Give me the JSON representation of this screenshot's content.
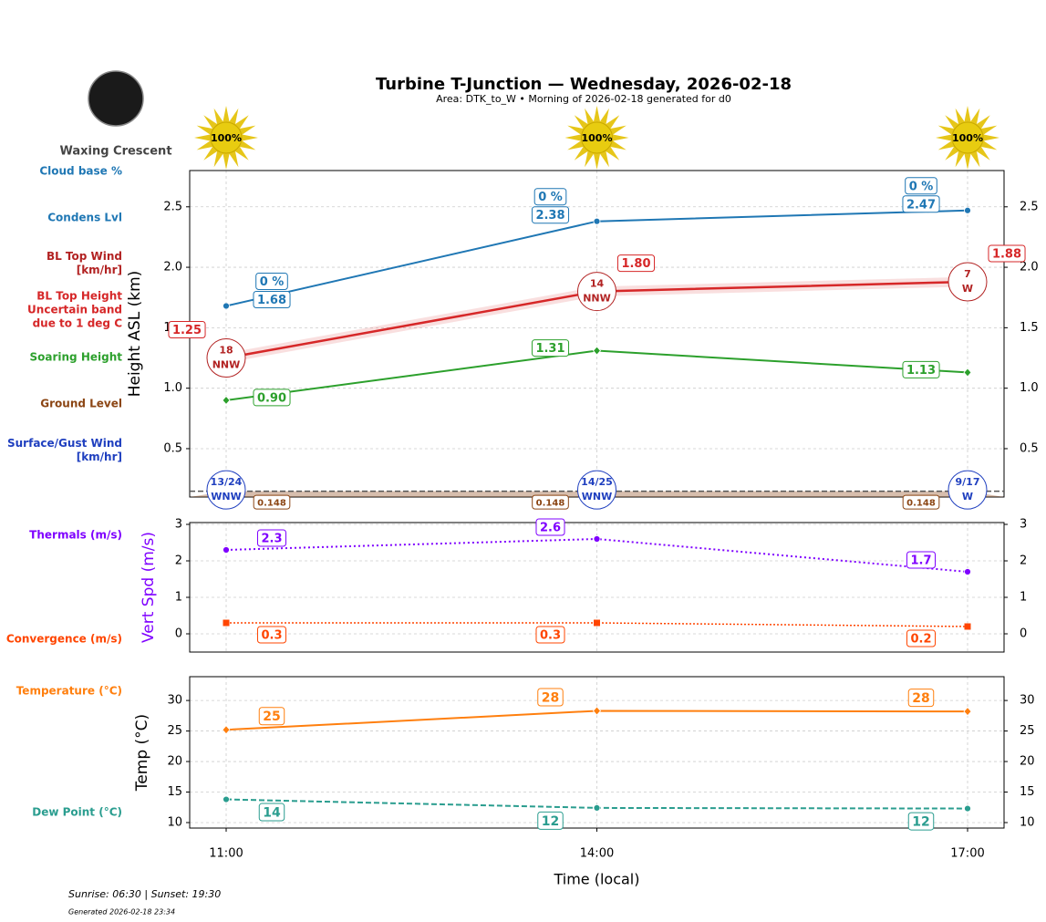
{
  "moon_phase": "Waxing Crescent",
  "sun": {
    "values": [
      100,
      100,
      100
    ],
    "value_labels": [
      "100%",
      "100%",
      "100%"
    ]
  },
  "footer": "Sunrise: 06:30 | Sunset: 19:30",
  "generated": "Generated 2026-02-18 23:34",
  "chart_data": [
    {
      "type": "line",
      "title": "Turbine T-Junction — Wednesday, 2026-02-18",
      "subtitle": "Area: DTK_to_W • Morning of 2026-02-18 generated for d0",
      "ylabel": "Height ASL (km)",
      "ylabel_color": "#000000",
      "ylim": [
        0.1,
        2.8
      ],
      "yticks": [
        0.5,
        {
          "value": 1,
          "label": "1.0"
        },
        1.5,
        {
          "value": 2,
          "label": "2.0"
        },
        2.5
      ],
      "grid": true,
      "series": [
        {
          "name": "Cloud base %",
          "color": "#1f77b4",
          "kind": "label",
          "values": [
            0,
            0,
            0
          ],
          "value_labels": [
            "0 %",
            "0 %",
            "0 %"
          ]
        },
        {
          "name": "Condens Lvl",
          "color": "#1f77b4",
          "kind": "line",
          "marker": "circle",
          "style": "solid",
          "values": [
            1.68,
            2.38,
            2.47
          ]
        },
        {
          "name": "BL Top Wind\n[km/hr]",
          "color": "#b22222",
          "kind": "wind",
          "values": [
            18,
            14,
            7
          ],
          "directions": [
            "NNW",
            "NNW",
            "W"
          ]
        },
        {
          "name": "BL Top Height\nUncertain band\ndue to 1 deg C",
          "color": "#d62728",
          "kind": "line",
          "marker": "none",
          "style": "solid",
          "values": [
            1.25,
            1.8,
            1.88
          ],
          "value_labels": [
            "1.25",
            "1.80",
            "1.88"
          ],
          "lower": [
            1.21,
            1.76,
            1.84
          ],
          "upper": [
            1.29,
            1.84,
            1.92
          ]
        },
        {
          "name": "Soaring Height",
          "color": "#2ca02c",
          "kind": "line",
          "marker": "diamond",
          "style": "solid",
          "values": [
            0.9,
            1.31,
            1.13
          ],
          "value_labels": [
            "0.90",
            "1.31",
            "1.13"
          ]
        },
        {
          "name": "Ground Level",
          "color": "#8b4513",
          "kind": "ground",
          "values": [
            0.148,
            0.148,
            0.148
          ]
        },
        {
          "name": "Surface/Gust Wind\n[km/hr]",
          "color": "#1f3fbf",
          "kind": "wind",
          "values": [
            13,
            14,
            9
          ],
          "gusts": [
            24,
            25,
            17
          ],
          "value_labels": [
            "13/24",
            "14/25",
            "9/17"
          ],
          "directions": [
            "WNW",
            "WNW",
            "W"
          ]
        }
      ]
    },
    {
      "type": "line",
      "ylabel": "Vert Spd (m/s)",
      "ylabel_color": "#7f00ff",
      "ylim": [
        -0.5,
        3.05
      ],
      "yticks": [
        0,
        1,
        2,
        3
      ],
      "grid": true,
      "series": [
        {
          "name": "Thermals (m/s)",
          "color": "#7f00ff",
          "kind": "line",
          "marker": "circle",
          "style": "dotted",
          "values": [
            2.3,
            2.6,
            1.7
          ]
        },
        {
          "name": "Convergence (m/s)",
          "color": "#ff4500",
          "kind": "line",
          "marker": "square",
          "style": "dotted-thin",
          "values": [
            0.3,
            0.3,
            0.2
          ]
        }
      ]
    },
    {
      "type": "line",
      "ylabel": "Temp (°C)",
      "ylabel_color": "#000000",
      "ylim": [
        9.1,
        33.9
      ],
      "yticks": [
        10,
        15,
        20,
        25,
        30
      ],
      "grid": true,
      "xlabel": "Time (local)",
      "categories": [
        "11:00",
        "14:00",
        "17:00"
      ],
      "series": [
        {
          "name": "Temperature (°C)",
          "color": "#ff7f0e",
          "kind": "line",
          "marker": "diamond",
          "style": "solid",
          "values": [
            25.2,
            28.3,
            28.2
          ],
          "value_labels": [
            "25",
            "28",
            "28"
          ]
        },
        {
          "name": "Dew Point (°C)",
          "color": "#2a9d8f",
          "kind": "line",
          "marker": "circle",
          "style": "dashed",
          "values": [
            13.8,
            12.4,
            12.3
          ],
          "value_labels": [
            "14",
            "12",
            "12"
          ]
        }
      ]
    }
  ]
}
